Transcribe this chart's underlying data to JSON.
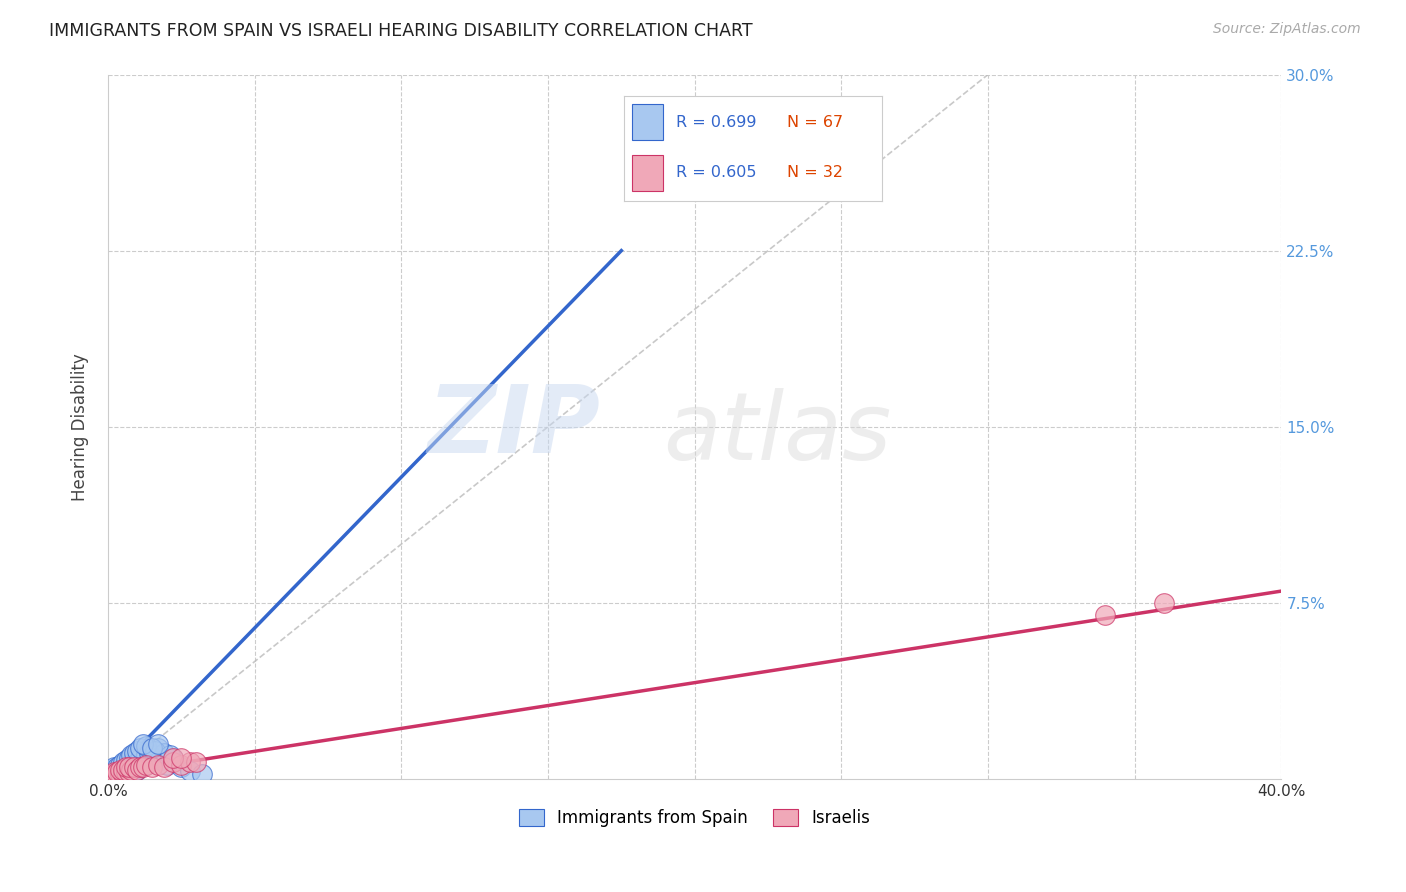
{
  "title": "IMMIGRANTS FROM SPAIN VS ISRAELI HEARING DISABILITY CORRELATION CHART",
  "source": "Source: ZipAtlas.com",
  "ylabel": "Hearing Disability",
  "xlim": [
    0,
    0.4
  ],
  "ylim": [
    0,
    0.3
  ],
  "color_blue": "#a8c8f0",
  "color_pink": "#f0a8b8",
  "line_blue": "#3366cc",
  "line_pink": "#cc3366",
  "line_diag": "#bbbbbb",
  "watermark_zip": "ZIP",
  "watermark_atlas": "atlas",
  "legend_r1": "R = 0.699",
  "legend_n1": "N = 67",
  "legend_r2": "R = 0.605",
  "legend_n2": "N = 32",
  "blue_points": [
    [
      0.0005,
      0.001
    ],
    [
      0.001,
      0.002
    ],
    [
      0.0015,
      0.001
    ],
    [
      0.002,
      0.0015
    ],
    [
      0.001,
      0.003
    ],
    [
      0.0025,
      0.002
    ],
    [
      0.003,
      0.001
    ],
    [
      0.002,
      0.003
    ],
    [
      0.003,
      0.002
    ],
    [
      0.004,
      0.001
    ],
    [
      0.0015,
      0.004
    ],
    [
      0.003,
      0.003
    ],
    [
      0.004,
      0.002
    ],
    [
      0.005,
      0.001
    ],
    [
      0.002,
      0.005
    ],
    [
      0.004,
      0.003
    ],
    [
      0.005,
      0.002
    ],
    [
      0.006,
      0.001
    ],
    [
      0.003,
      0.005
    ],
    [
      0.005,
      0.004
    ],
    [
      0.006,
      0.003
    ],
    [
      0.007,
      0.002
    ],
    [
      0.004,
      0.006
    ],
    [
      0.006,
      0.005
    ],
    [
      0.007,
      0.004
    ],
    [
      0.008,
      0.003
    ],
    [
      0.005,
      0.007
    ],
    [
      0.007,
      0.006
    ],
    [
      0.008,
      0.005
    ],
    [
      0.009,
      0.003
    ],
    [
      0.006,
      0.008
    ],
    [
      0.008,
      0.007
    ],
    [
      0.009,
      0.005
    ],
    [
      0.01,
      0.004
    ],
    [
      0.007,
      0.009
    ],
    [
      0.009,
      0.008
    ],
    [
      0.01,
      0.006
    ],
    [
      0.011,
      0.005
    ],
    [
      0.008,
      0.01
    ],
    [
      0.01,
      0.009
    ],
    [
      0.011,
      0.007
    ],
    [
      0.012,
      0.006
    ],
    [
      0.009,
      0.011
    ],
    [
      0.011,
      0.009
    ],
    [
      0.012,
      0.008
    ],
    [
      0.013,
      0.006
    ],
    [
      0.01,
      0.012
    ],
    [
      0.013,
      0.01
    ],
    [
      0.014,
      0.008
    ],
    [
      0.011,
      0.013
    ],
    [
      0.015,
      0.009
    ],
    [
      0.014,
      0.011
    ],
    [
      0.016,
      0.01
    ],
    [
      0.018,
      0.008
    ],
    [
      0.02,
      0.006
    ],
    [
      0.017,
      0.013
    ],
    [
      0.019,
      0.011
    ],
    [
      0.022,
      0.009
    ],
    [
      0.025,
      0.005
    ],
    [
      0.028,
      0.0035
    ],
    [
      0.032,
      0.002
    ],
    [
      0.013,
      0.014
    ],
    [
      0.016,
      0.012
    ],
    [
      0.021,
      0.01
    ],
    [
      0.012,
      0.015
    ],
    [
      0.015,
      0.013
    ],
    [
      0.017,
      0.015
    ]
  ],
  "pink_points": [
    [
      0.0005,
      0.001
    ],
    [
      0.001,
      0.0015
    ],
    [
      0.0015,
      0.001
    ],
    [
      0.002,
      0.002
    ],
    [
      0.003,
      0.001
    ],
    [
      0.002,
      0.003
    ],
    [
      0.004,
      0.002
    ],
    [
      0.003,
      0.003
    ],
    [
      0.005,
      0.002
    ],
    [
      0.004,
      0.004
    ],
    [
      0.006,
      0.003
    ],
    [
      0.005,
      0.004
    ],
    [
      0.007,
      0.003
    ],
    [
      0.006,
      0.005
    ],
    [
      0.008,
      0.004
    ],
    [
      0.007,
      0.005
    ],
    [
      0.009,
      0.005
    ],
    [
      0.01,
      0.004
    ],
    [
      0.011,
      0.005
    ],
    [
      0.012,
      0.005
    ],
    [
      0.013,
      0.006
    ],
    [
      0.015,
      0.005
    ],
    [
      0.017,
      0.006
    ],
    [
      0.019,
      0.005
    ],
    [
      0.022,
      0.007
    ],
    [
      0.025,
      0.006
    ],
    [
      0.028,
      0.007
    ],
    [
      0.03,
      0.007
    ],
    [
      0.022,
      0.009
    ],
    [
      0.025,
      0.009
    ],
    [
      0.36,
      0.075
    ],
    [
      0.34,
      0.07
    ]
  ],
  "blue_line": {
    "x0": 0.0,
    "y0": 0.0,
    "x1": 0.175,
    "y1": 0.225
  },
  "pink_line": {
    "x0": 0.0,
    "y0": 0.002,
    "x1": 0.4,
    "y1": 0.08
  },
  "diag_line": {
    "x0": 0.0,
    "y0": 0.0,
    "x1": 0.3,
    "y1": 0.3
  }
}
